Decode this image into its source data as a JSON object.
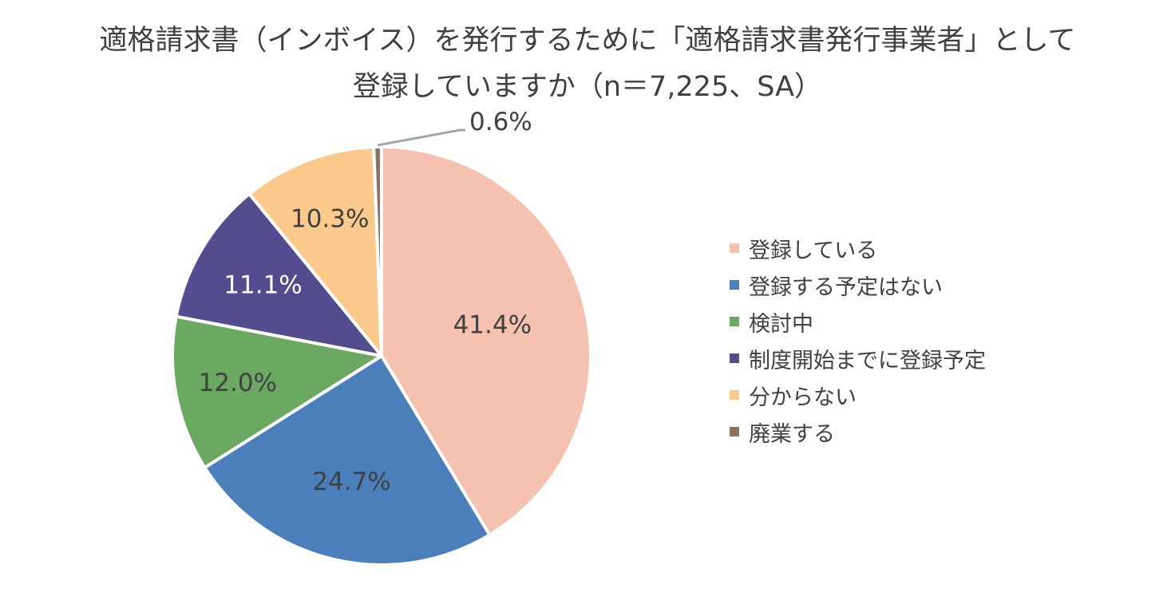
{
  "chart_data": {
    "type": "pie",
    "title_lines": [
      "適格請求書（インボイス）を発行するために「適格請求書発行事業者」として",
      "登録していますか（n＝7,225、SA）"
    ],
    "slices": [
      {
        "label": "登録している",
        "value": 41.4,
        "value_label": "41.4%",
        "color": "#F5C2B2"
      },
      {
        "label": "登録する予定はない",
        "value": 24.7,
        "value_label": "24.7%",
        "color": "#4A7FBC"
      },
      {
        "label": "検討中",
        "value": 12.0,
        "value_label": "12.0%",
        "color": "#6BA862"
      },
      {
        "label": "制度開始までに登録予定",
        "value": 11.1,
        "value_label": "11.1%",
        "color": "#534C8F"
      },
      {
        "label": "分からない",
        "value": 10.3,
        "value_label": "10.3%",
        "color": "#FCC98C"
      },
      {
        "label": "廃業する",
        "value": 0.6,
        "value_label": "0.6%",
        "color": "#8C7260"
      }
    ],
    "start_angle": "12 o'clock",
    "direction": "clockwise",
    "legend_position": "right",
    "leader_line_color": "#A6A6A6",
    "label_colors": {
      "dark": "#404040",
      "light": "#FFFFFF"
    }
  }
}
